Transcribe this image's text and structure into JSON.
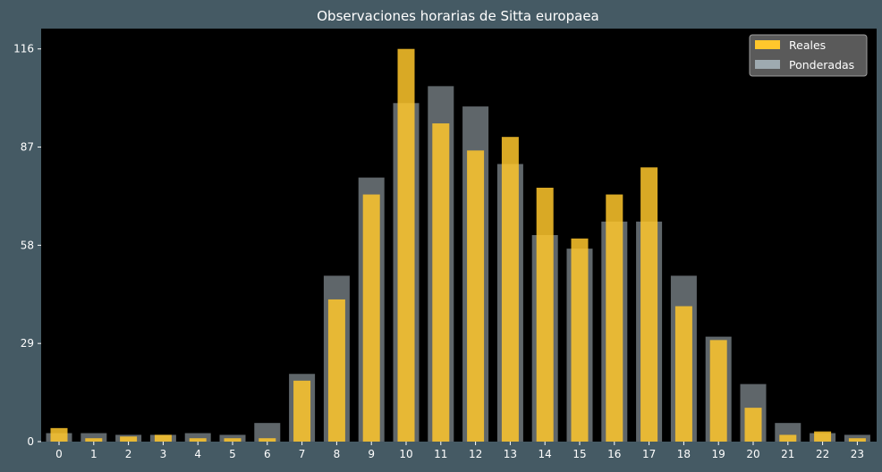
{
  "chart_data": {
    "type": "bar",
    "title": "Observaciones horarias de Sitta europaea",
    "xlabel": "",
    "ylabel": "",
    "categories": [
      "0",
      "1",
      "2",
      "3",
      "4",
      "5",
      "6",
      "7",
      "8",
      "9",
      "10",
      "11",
      "12",
      "13",
      "14",
      "15",
      "16",
      "17",
      "18",
      "19",
      "20",
      "21",
      "22",
      "23"
    ],
    "series": [
      {
        "name": "Reales",
        "color": "#ffc72c",
        "values": [
          4,
          1,
          1.5,
          2,
          1,
          1,
          1,
          18,
          42,
          73,
          116,
          94,
          86,
          90,
          75,
          60,
          73,
          81,
          40,
          30,
          10,
          2,
          3,
          1
        ]
      },
      {
        "name": "Ponderadas",
        "color": "#9eaab0",
        "values": [
          2.5,
          2.5,
          2,
          2,
          2.5,
          2,
          5.5,
          20,
          49,
          78,
          100,
          105,
          99,
          82,
          61,
          57,
          65,
          65,
          49,
          31,
          17,
          5.5,
          2.5,
          2
        ]
      }
    ],
    "ylim": [
      0,
      122
    ],
    "yticks": [
      0,
      29,
      58,
      87,
      116
    ],
    "grid": false,
    "legend_position": "top-right"
  }
}
